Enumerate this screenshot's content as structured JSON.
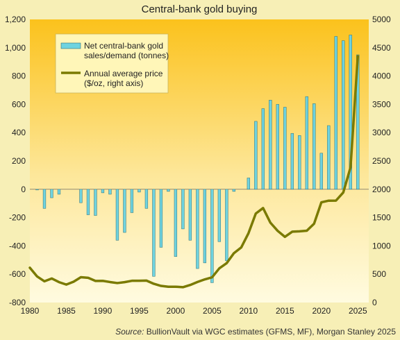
{
  "chart_data": {
    "type": "bar+line",
    "title": "Central-bank  gold buying",
    "source_label": "Source:",
    "source_text": " BullionVault via  WGC estimates (GFMS, MF), Morgan  Stanley 2025",
    "x_ticks": [
      "1980",
      "1985",
      "1990",
      "1995",
      "2000",
      "2005",
      "2010",
      "2015",
      "2020",
      "2025"
    ],
    "x_range": [
      1980,
      2026.5
    ],
    "y_left": {
      "range": [
        -800,
        1200
      ],
      "ticks": [
        "-800",
        "-600",
        "-400",
        "-200",
        "0",
        "200",
        "400",
        "600",
        "800",
        "1,000",
        "1,200"
      ]
    },
    "y_right": {
      "range": [
        0,
        5000
      ],
      "ticks": [
        "0",
        "500",
        "1000",
        "1500",
        "2000",
        "2500",
        "3000",
        "3500",
        "4000",
        "4500",
        "5000"
      ]
    },
    "legend": {
      "bar_line1": "Net central-bank gold",
      "bar_line2": "sales/demand (tonnes)",
      "line_line1": "Annual average price",
      "line_line2": "($/oz, right axis)",
      "placement": "top-left"
    },
    "bars": {
      "name": "Net central-bank gold sales/demand (tonnes)",
      "axis": "left",
      "color": "#6fd3df",
      "years": [
        1980,
        1981,
        1982,
        1983,
        1984,
        1985,
        1986,
        1987,
        1988,
        1989,
        1990,
        1991,
        1992,
        1993,
        1994,
        1995,
        1996,
        1997,
        1998,
        1999,
        2000,
        2001,
        2002,
        2003,
        2004,
        2005,
        2006,
        2007,
        2008,
        2009,
        2010,
        2011,
        2012,
        2013,
        2014,
        2015,
        2016,
        2017,
        2018,
        2019,
        2020,
        2021,
        2022,
        2023,
        2024,
        2025
      ],
      "values": [
        0,
        -5,
        -135,
        -60,
        -35,
        0,
        0,
        -95,
        -180,
        -185,
        -25,
        -35,
        -360,
        -305,
        -165,
        -20,
        -135,
        -615,
        -410,
        -15,
        -475,
        -280,
        -360,
        -560,
        -520,
        -660,
        -370,
        -505,
        -15,
        0,
        80,
        480,
        570,
        630,
        600,
        580,
        395,
        380,
        655,
        605,
        255,
        450,
        1080,
        1050,
        1090,
        950
      ]
    },
    "line": {
      "name": "Annual average price ($/oz, right axis)",
      "axis": "right",
      "color": "#7a7a00",
      "years": [
        1980,
        1981,
        1982,
        1983,
        1984,
        1985,
        1986,
        1987,
        1988,
        1989,
        1990,
        1991,
        1992,
        1993,
        1994,
        1995,
        1996,
        1997,
        1998,
        1999,
        2000,
        2001,
        2002,
        2003,
        2004,
        2005,
        2006,
        2007,
        2008,
        2009,
        2010,
        2011,
        2012,
        2013,
        2014,
        2015,
        2016,
        2017,
        2018,
        2019,
        2020,
        2021,
        2022,
        2023,
        2024,
        2025
      ],
      "values": [
        615,
        460,
        375,
        425,
        360,
        317,
        368,
        447,
        437,
        381,
        383,
        362,
        344,
        360,
        384,
        384,
        388,
        331,
        294,
        279,
        279,
        271,
        310,
        363,
        409,
        445,
        604,
        695,
        872,
        972,
        1225,
        1572,
        1669,
        1411,
        1266,
        1160,
        1251,
        1257,
        1268,
        1393,
        1770,
        1799,
        1800,
        1943,
        2386,
        4350
      ]
    },
    "grid": false
  }
}
